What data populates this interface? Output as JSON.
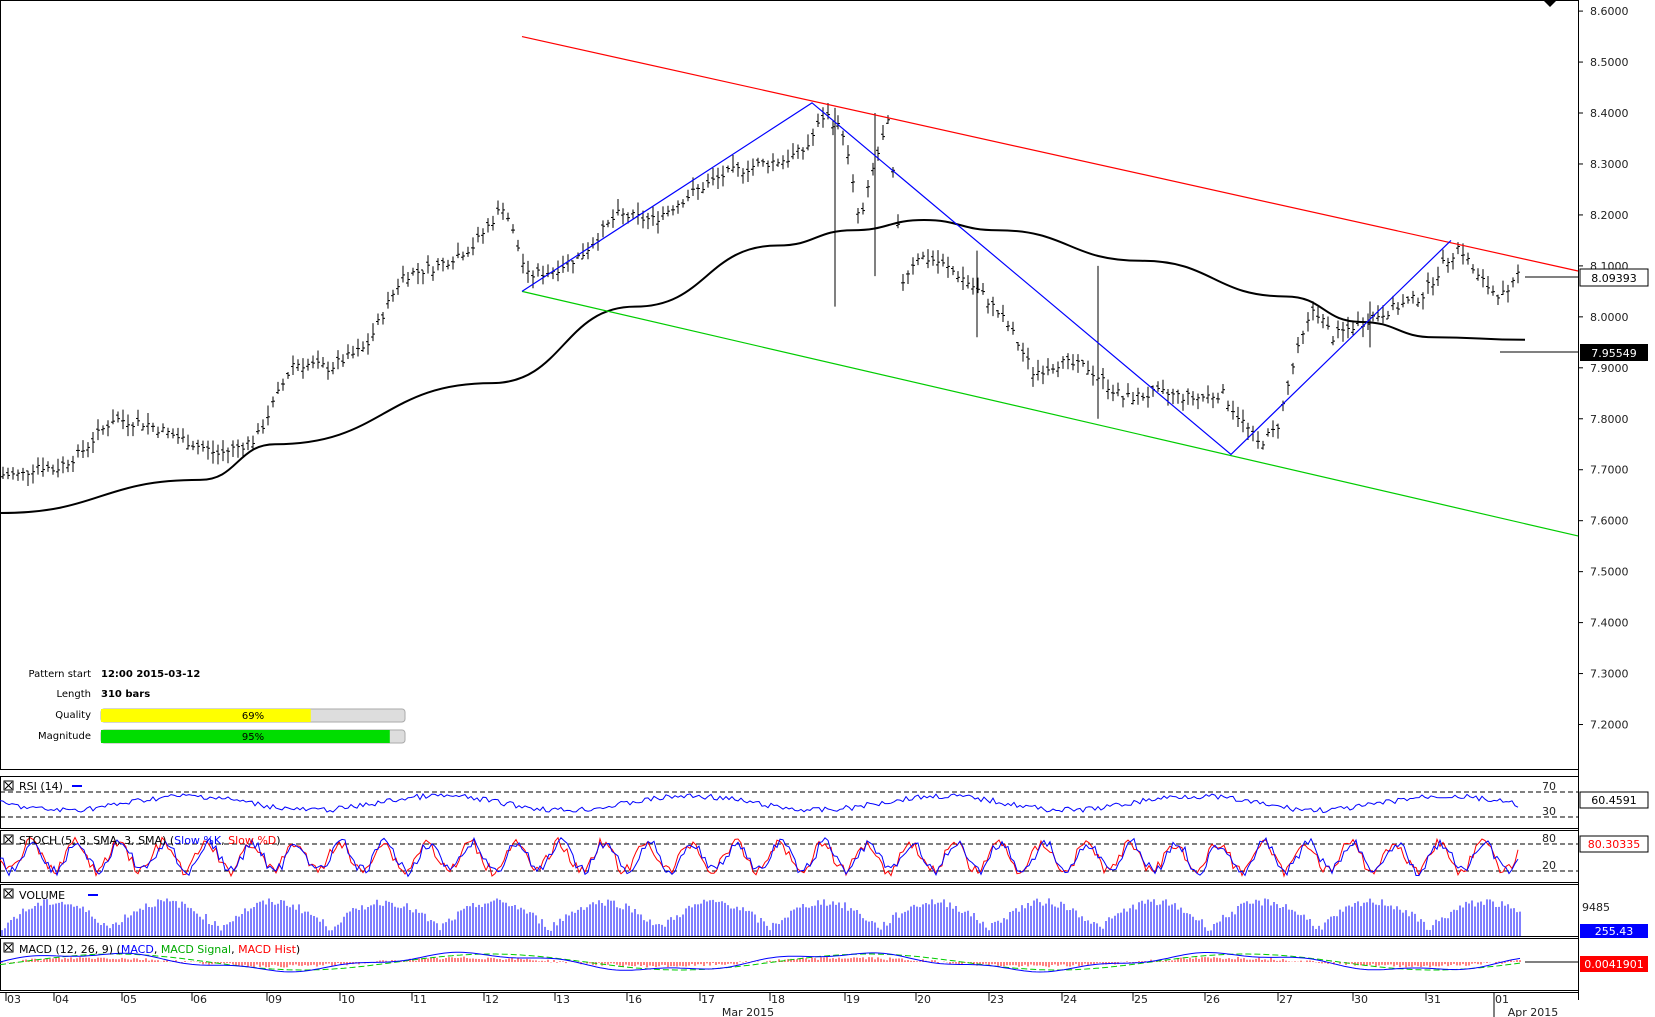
{
  "colors": {
    "price_bars": "#000000",
    "ma_line": "#000000",
    "resistance_line": "#ff0000",
    "support_line": "#00cc00",
    "zigzag": "#0000ff",
    "rsi_line": "#0000ff",
    "stoch_k": "#0000ff",
    "stoch_d": "#ff0000",
    "volume": "#0000ff",
    "macd_line": "#0000ff",
    "macd_signal": "#00cc00",
    "macd_hist": "#ff0000",
    "quality_fill": "#ffff00",
    "magnitude_fill": "#00dd00"
  },
  "pattern_info": {
    "pattern_start_label": "Pattern start",
    "pattern_start_value": "12:00 2015-03-12",
    "length_label": "Length",
    "length_value": "310 bars",
    "quality_label": "Quality",
    "quality_pct": 69,
    "quality_text": "69%",
    "magnitude_label": "Magnitude",
    "magnitude_pct": 95,
    "magnitude_text": "95%"
  },
  "price_axis": {
    "ticks": [
      "8.6000",
      "8.5000",
      "8.4000",
      "8.3000",
      "8.2000",
      "8.1000",
      "8.0000",
      "7.9000",
      "7.8000",
      "7.7000",
      "7.6000",
      "7.5000",
      "7.4000",
      "7.3000",
      "7.2000"
    ],
    "current_price": "8.09393",
    "ma_value": "7.95549"
  },
  "indicators": {
    "rsi": {
      "title": "RSI (14)",
      "level_high": "70",
      "level_low": "30",
      "value": "60.4591"
    },
    "stoch": {
      "title_prefix": "STOCH (5, 3, SMA, 3, SMA) (",
      "k_label": "Slow %K",
      "sep": ", ",
      "d_label": "Slow %D",
      "title_suffix": ")",
      "level_high": "80",
      "level_low": "20",
      "value": "80.30335"
    },
    "volume": {
      "title": "VOLUME",
      "tick": "9485",
      "value": "255.43"
    },
    "macd": {
      "title_prefix": "MACD (12, 26, 9) (",
      "macd_label": "MACD",
      "signal_label": "MACD Signal",
      "hist_label": "MACD Hist",
      "title_suffix": ")",
      "value": "0.0041901"
    }
  },
  "time_axis": {
    "day_labels": [
      "03",
      "04",
      "05",
      "06",
      "09",
      "10",
      "11",
      "12",
      "13",
      "16",
      "17",
      "18",
      "19",
      "20",
      "23",
      "24",
      "25",
      "26",
      "27",
      "30",
      "31",
      "01"
    ],
    "month_labels": [
      "Mar 2015",
      "Apr 2015"
    ]
  },
  "chart_data": {
    "type": "line",
    "title": "",
    "series": [
      {
        "name": "",
        "x": [
          "03",
          "03",
          "03",
          "04",
          "04",
          "05",
          "05",
          "06",
          "06",
          "09",
          "09",
          "10",
          "10",
          "11",
          "11",
          "12",
          "12",
          "12",
          "13",
          "13",
          "16",
          "16",
          "17",
          "17",
          "18",
          "18",
          "18",
          "18",
          "19",
          "19",
          "19",
          "19",
          "19",
          "20",
          "20",
          "20",
          "23",
          "23",
          "23",
          "24",
          "24",
          "25",
          "25",
          "26",
          "26",
          "26",
          "26",
          "27",
          "27",
          "27",
          "27",
          "30",
          "30",
          "30",
          "31",
          "31",
          "31",
          "31",
          "01",
          "01"
        ],
        "y": [
          7.69,
          7.71,
          7.7,
          7.73,
          7.8,
          7.79,
          7.76,
          7.73,
          7.76,
          7.91,
          7.9,
          7.94,
          8.08,
          8.1,
          8.14,
          8.22,
          8.08,
          8.09,
          8.12,
          8.2,
          8.19,
          8.24,
          8.28,
          8.3,
          8.31,
          8.33,
          8.4,
          8.36,
          8.18,
          8.3,
          8.38,
          8.07,
          8.12,
          8.11,
          8.08,
          8.04,
          7.98,
          7.89,
          7.91,
          7.9,
          7.84,
          7.85,
          7.84,
          7.85,
          7.8,
          7.75,
          7.78,
          7.92,
          8.02,
          7.96,
          7.98,
          8.0,
          8.02,
          8.04,
          8.1,
          8.14,
          8.08,
          8.05,
          8.04,
          8.09
        ]
      },
      {
        "name": "",
        "x": [
          "03",
          "06",
          "09",
          "12",
          "16",
          "18",
          "19",
          "20",
          "23",
          "25",
          "27",
          "30",
          "31",
          "01"
        ],
        "y": [
          7.615,
          7.68,
          7.75,
          7.87,
          8.02,
          8.14,
          8.17,
          8.19,
          8.17,
          8.11,
          8.04,
          7.99,
          7.96,
          7.955
        ]
      }
    ],
    "trend_lines": [
      {
        "x": [
          "12",
          "01"
        ],
        "y": [
          8.55,
          8.09
        ]
      },
      {
        "x": [
          "12",
          "01"
        ],
        "y": [
          8.05,
          7.57
        ]
      }
    ],
    "zigzag": {
      "x": [
        "12",
        "18",
        "26",
        "31"
      ],
      "y": [
        8.05,
        8.42,
        7.73,
        8.15
      ]
    },
    "ylim": [
      7.15,
      8.61
    ],
    "grid": false
  }
}
